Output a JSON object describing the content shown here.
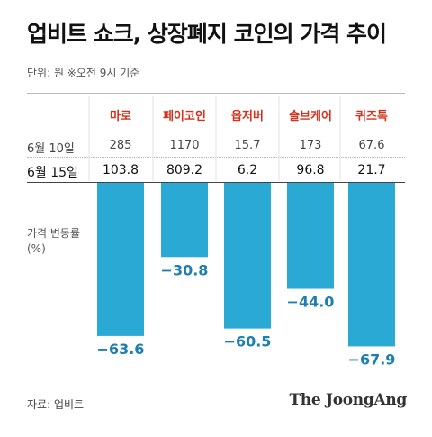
{
  "title": "업비트 쇼크, 상장폐지 코인의 가격 추이",
  "unit_note": "단위: 원   ※오전 9시 기준",
  "row_labels": {
    "before": "6월 10일",
    "after": "6월 15일"
  },
  "source": "자료: 업비트",
  "brand": "The JoongAng",
  "colors": {
    "bar": "#2aa9d4",
    "value_text": "#1d7fb0",
    "coin_name": "#d2321c"
  },
  "chart_data": {
    "type": "bar",
    "title": "업비트 쇼크, 상장폐지 코인의 가격 추이",
    "ylabel": "가격 변동률 (%)",
    "ylabel_lines": [
      "가격 변동률",
      "(%)"
    ],
    "categories": [
      "마로",
      "페이코인",
      "옵저버",
      "솔브케어",
      "퀴즈톡"
    ],
    "price_jun10": [
      "285",
      "1170",
      "15.7",
      "173",
      "67.6"
    ],
    "price_jun15": [
      "103.8",
      "809.2",
      "6.2",
      "96.8",
      "21.7"
    ],
    "values": [
      -63.6,
      -30.8,
      -60.5,
      -44.0,
      -67.9
    ],
    "value_labels": [
      "−63.6",
      "−30.8",
      "−60.5",
      "−44.0",
      "−67.9"
    ],
    "ylim": [
      -70,
      0
    ]
  }
}
